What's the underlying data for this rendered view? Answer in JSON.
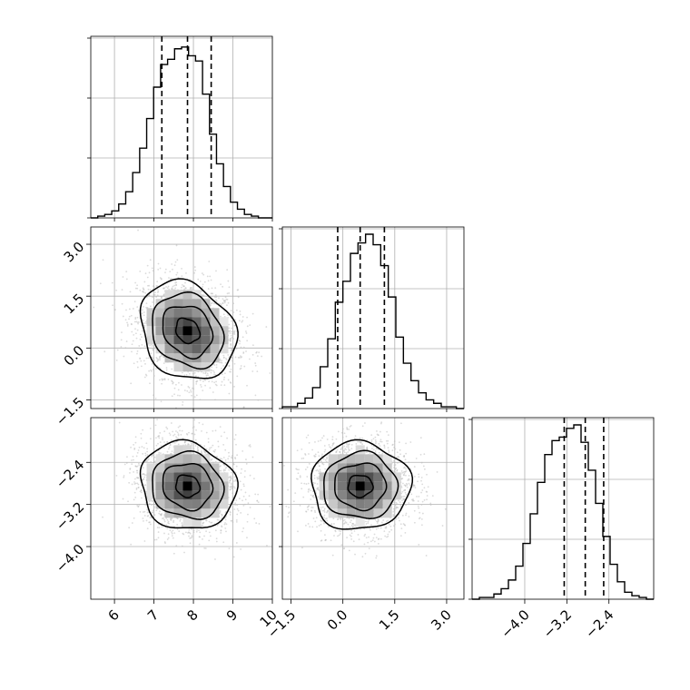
{
  "chart_data": {
    "type": "corner",
    "variables": [
      {
        "range": [
          5.4,
          10.0
        ],
        "ticks": [
          {
            "v": 6,
            "label": "6"
          },
          {
            "v": 7,
            "label": "7"
          },
          {
            "v": 8,
            "label": "8"
          },
          {
            "v": 9,
            "label": "9"
          },
          {
            "v": 10,
            "label": "10"
          }
        ],
        "quantiles": [
          7.2,
          7.85,
          8.45
        ],
        "mean": 7.85,
        "sd": 0.55,
        "hist": [
          0.0,
          0.01,
          0.02,
          0.04,
          0.08,
          0.15,
          0.26,
          0.4,
          0.57,
          0.75,
          0.88,
          0.91,
          0.97,
          0.98,
          0.93,
          0.9,
          0.71,
          0.48,
          0.31,
          0.18,
          0.09,
          0.05,
          0.02,
          0.01,
          0.0,
          0.0
        ]
      },
      {
        "range": [
          -1.75,
          3.5
        ],
        "ticks": [
          {
            "v": -1.5,
            "label": "−1.5"
          },
          {
            "v": 0.0,
            "label": "0.0"
          },
          {
            "v": 1.5,
            "label": "1.5"
          },
          {
            "v": 3.0,
            "label": "3.0"
          }
        ],
        "quantiles": [
          -0.15,
          0.5,
          1.2
        ],
        "mean": 0.5,
        "sd": 0.65,
        "hist": [
          0.01,
          0.01,
          0.03,
          0.06,
          0.12,
          0.24,
          0.4,
          0.61,
          0.73,
          0.89,
          0.95,
          1.0,
          0.94,
          0.82,
          0.64,
          0.41,
          0.26,
          0.16,
          0.09,
          0.05,
          0.03,
          0.01,
          0.01,
          0.0
        ]
      },
      {
        "range": [
          -5.0,
          -1.55
        ],
        "ticks": [
          {
            "v": -4.0,
            "label": "−4.0"
          },
          {
            "v": -3.2,
            "label": "−3.2"
          },
          {
            "v": -2.4,
            "label": "−2.4"
          }
        ],
        "quantiles": [
          -3.25,
          -2.85,
          -2.5
        ],
        "mean": -2.85,
        "sd": 0.38,
        "hist": [
          0.0,
          0.01,
          0.01,
          0.03,
          0.06,
          0.11,
          0.19,
          0.32,
          0.49,
          0.67,
          0.83,
          0.91,
          0.93,
          0.98,
          1.0,
          0.9,
          0.74,
          0.55,
          0.36,
          0.2,
          0.1,
          0.04,
          0.02,
          0.01,
          0.0
        ]
      }
    ],
    "pair_correlations": {
      "1-0": -0.2,
      "2-0": -0.1,
      "2-1": 0.0
    },
    "colors": {
      "hist": "#000000",
      "contour": "#000000",
      "scatter": "#bdbdbd"
    }
  }
}
